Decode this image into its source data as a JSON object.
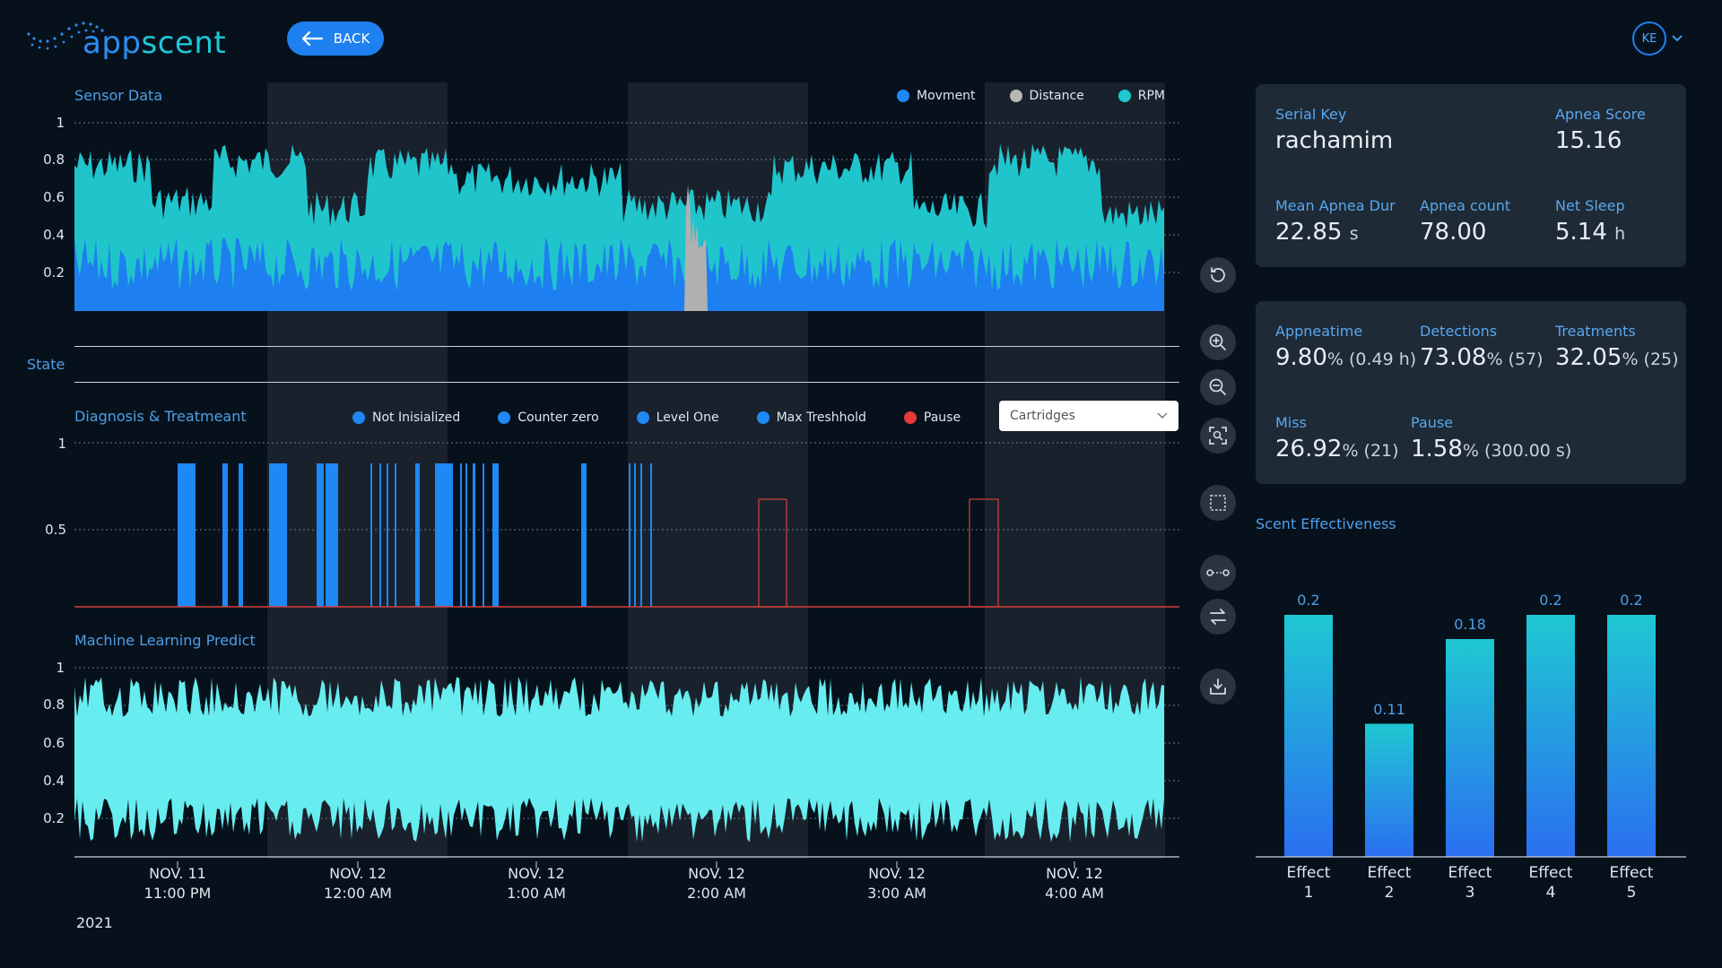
{
  "app": {
    "logo_text_a": "app",
    "logo_text_b": "scent",
    "back_label": "BACK",
    "avatar_initials": "KE"
  },
  "sensor": {
    "title": "Sensor Data",
    "legend": [
      {
        "label": "Movment",
        "color": "#1e88f5"
      },
      {
        "label": "Distance",
        "color": "#b8b8b8"
      },
      {
        "label": "RPM",
        "color": "#1ec9d0"
      }
    ],
    "yticks": [
      "1",
      "0.8",
      "0.6",
      "0.4",
      "0.2"
    ]
  },
  "state": {
    "title": "State"
  },
  "diagnosis": {
    "title": "Diagnosis & Treatmeant",
    "legend": [
      {
        "label": "Not Inisialized",
        "color": "#1e88f5"
      },
      {
        "label": "Counter zero",
        "color": "#1e88f5"
      },
      {
        "label": "Level One",
        "color": "#1e88f5"
      },
      {
        "label": "Max Treshhold",
        "color": "#1e88f5"
      },
      {
        "label": "Pause",
        "color": "#e53935"
      }
    ],
    "yticks": [
      "1",
      "0.5"
    ],
    "select_value": "Cartridges"
  },
  "ml": {
    "title": "Machine Learning Predict",
    "yticks": [
      "1",
      "0.8",
      "0.6",
      "0.4",
      "0.2"
    ]
  },
  "xaxis": {
    "ticks": [
      {
        "date": "NOV. 11",
        "time": "11:00 PM"
      },
      {
        "date": "NOV. 12",
        "time": "12:00 AM"
      },
      {
        "date": "NOV. 12",
        "time": "1:00 AM"
      },
      {
        "date": "NOV. 12",
        "time": "2:00 AM"
      },
      {
        "date": "NOV. 12",
        "time": "3:00 AM"
      },
      {
        "date": "NOV. 12",
        "time": "4:00 AM"
      }
    ],
    "year": "2021"
  },
  "stats1": {
    "serial_key_label": "Serial Key",
    "serial_key": "rachamim",
    "apnea_score_label": "Apnea Score",
    "apnea_score": "15.16",
    "mean_dur_label": "Mean Apnea Dur",
    "mean_dur_value": "22.85",
    "mean_dur_unit": "s",
    "apnea_count_label": "Apnea count",
    "apnea_count": "78.00",
    "net_sleep_label": "Net Sleep",
    "net_sleep_value": "5.14",
    "net_sleep_unit": "h"
  },
  "stats2": {
    "appneatime_label": "Appneatime",
    "appneatime_value": "9.80",
    "appneatime_extra": "% (0.49 h)",
    "detections_label": "Detections",
    "detections_value": "73.08",
    "detections_extra": "% (57)",
    "treatments_label": "Treatments",
    "treatments_value": "32.05",
    "treatments_extra": "% (25)",
    "miss_label": "Miss",
    "miss_value": "26.92",
    "miss_extra": "% (21)",
    "pause_label": "Pause",
    "pause_value": "1.58",
    "pause_extra": "% (300.00 s)"
  },
  "scent_title": "Scent Effectiveness",
  "chart_data": {
    "type": "bar",
    "title": "Scent Effectiveness",
    "categories": [
      "Effect 1",
      "Effect 2",
      "Effect 3",
      "Effect 4",
      "Effect 5"
    ],
    "category_lines": [
      [
        "Effect",
        "1"
      ],
      [
        "Effect",
        "2"
      ],
      [
        "Effect",
        "3"
      ],
      [
        "Effect",
        "4"
      ],
      [
        "Effect",
        "5"
      ]
    ],
    "values": [
      0.2,
      0.11,
      0.18,
      0.2,
      0.2
    ],
    "value_labels": [
      "0.2",
      "0.11",
      "0.18",
      "0.2",
      "0.2"
    ],
    "ylim": [
      0,
      0.2
    ]
  },
  "tools": [
    "reset-icon",
    "zoom-in-icon",
    "zoom-out-icon",
    "zoom-fit-icon",
    "select-area-icon",
    "link-icon",
    "swap-icon",
    "download-icon"
  ]
}
